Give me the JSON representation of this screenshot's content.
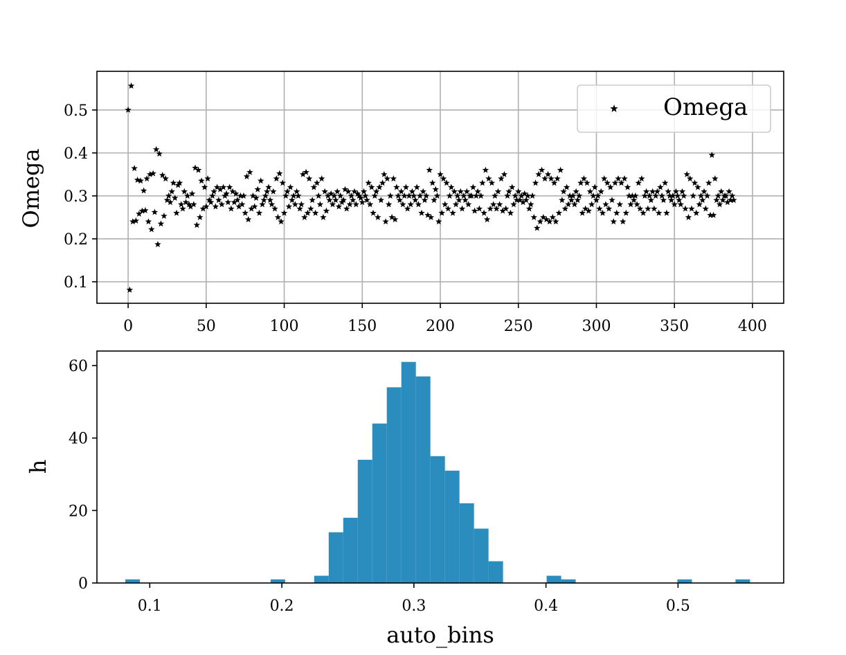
{
  "chart_data": [
    {
      "type": "scatter",
      "marker": "star",
      "color": "#000000",
      "ylabel": "Omega",
      "xlabel_visible": "",
      "xlim": [
        -20,
        420
      ],
      "ylim": [
        0.05,
        0.59
      ],
      "xticks": [
        0,
        50,
        100,
        150,
        200,
        250,
        300,
        350,
        400
      ],
      "yticks": [
        0.1,
        0.2,
        0.3,
        0.4,
        0.5
      ],
      "grid": true,
      "legend": {
        "position": "top-right",
        "entries": [
          "Omega"
        ]
      },
      "series": [
        {
          "name": "Omega",
          "x_start": 0,
          "x_step": 1,
          "values": [
            0.5,
            0.081,
            0.556,
            0.24,
            0.364,
            0.242,
            0.337,
            0.258,
            0.335,
            0.265,
            0.312,
            0.266,
            0.34,
            0.24,
            0.35,
            0.222,
            0.352,
            0.262,
            0.408,
            0.187,
            0.398,
            0.235,
            0.348,
            0.253,
            0.34,
            0.29,
            0.3,
            0.285,
            0.31,
            0.33,
            0.295,
            0.26,
            0.325,
            0.33,
            0.28,
            0.27,
            0.31,
            0.285,
            0.3,
            0.28,
            0.275,
            0.305,
            0.28,
            0.365,
            0.232,
            0.36,
            0.25,
            0.335,
            0.27,
            0.32,
            0.275,
            0.34,
            0.29,
            0.285,
            0.3,
            0.31,
            0.275,
            0.32,
            0.29,
            0.315,
            0.28,
            0.32,
            0.3,
            0.305,
            0.285,
            0.32,
            0.27,
            0.31,
            0.285,
            0.305,
            0.29,
            0.275,
            0.3,
            0.28,
            0.3,
            0.26,
            0.345,
            0.245,
            0.355,
            0.27,
            0.3,
            0.275,
            0.295,
            0.315,
            0.26,
            0.335,
            0.28,
            0.29,
            0.3,
            0.31,
            0.32,
            0.29,
            0.28,
            0.31,
            0.27,
            0.34,
            0.25,
            0.352,
            0.24,
            0.33,
            0.26,
            0.3,
            0.31,
            0.275,
            0.32,
            0.29,
            0.3,
            0.28,
            0.31,
            0.3,
            0.27,
            0.28,
            0.35,
            0.25,
            0.355,
            0.26,
            0.34,
            0.27,
            0.29,
            0.32,
            0.26,
            0.33,
            0.3,
            0.28,
            0.34,
            0.25,
            0.31,
            0.265,
            0.3,
            0.29,
            0.305,
            0.28,
            0.3,
            0.29,
            0.31,
            0.275,
            0.3,
            0.285,
            0.29,
            0.315,
            0.27,
            0.31,
            0.28,
            0.3,
            0.29,
            0.31,
            0.28,
            0.305,
            0.3,
            0.295,
            0.285,
            0.31,
            0.3,
            0.29,
            0.33,
            0.28,
            0.32,
            0.26,
            0.3,
            0.31,
            0.25,
            0.32,
            0.29,
            0.33,
            0.35,
            0.24,
            0.34,
            0.28,
            0.3,
            0.25,
            0.34,
            0.245,
            0.32,
            0.3,
            0.29,
            0.31,
            0.28,
            0.3,
            0.32,
            0.27,
            0.3,
            0.28,
            0.31,
            0.3,
            0.29,
            0.32,
            0.28,
            0.3,
            0.26,
            0.31,
            0.29,
            0.3,
            0.255,
            0.36,
            0.25,
            0.33,
            0.29,
            0.315,
            0.3,
            0.24,
            0.35,
            0.26,
            0.34,
            0.28,
            0.33,
            0.27,
            0.3,
            0.32,
            0.26,
            0.31,
            0.28,
            0.3,
            0.29,
            0.31,
            0.27,
            0.3,
            0.29,
            0.31,
            0.28,
            0.3,
            0.3,
            0.32,
            0.265,
            0.3,
            0.31,
            0.27,
            0.3,
            0.33,
            0.26,
            0.36,
            0.245,
            0.34,
            0.27,
            0.33,
            0.28,
            0.3,
            0.27,
            0.31,
            0.28,
            0.34,
            0.265,
            0.35,
            0.27,
            0.3,
            0.31,
            0.26,
            0.32,
            0.28,
            0.3,
            0.29,
            0.31,
            0.29,
            0.3,
            0.285,
            0.305,
            0.29,
            0.3,
            0.27,
            0.28,
            0.3,
            0.25,
            0.33,
            0.225,
            0.35,
            0.24,
            0.36,
            0.25,
            0.34,
            0.245,
            0.35,
            0.24,
            0.34,
            0.25,
            0.33,
            0.24,
            0.34,
            0.26,
            0.36,
            0.29,
            0.31,
            0.27,
            0.32,
            0.28,
            0.3,
            0.29,
            0.3,
            0.28,
            0.31,
            0.29,
            0.3,
            0.33,
            0.26,
            0.34,
            0.27,
            0.33,
            0.265,
            0.31,
            0.28,
            0.3,
            0.32,
            0.29,
            0.3,
            0.27,
            0.31,
            0.26,
            0.34,
            0.28,
            0.33,
            0.27,
            0.32,
            0.29,
            0.24,
            0.33,
            0.26,
            0.34,
            0.28,
            0.33,
            0.24,
            0.34,
            0.26,
            0.32,
            0.3,
            0.28,
            0.3,
            0.29,
            0.3,
            0.28,
            0.33,
            0.27,
            0.34,
            0.26,
            0.3,
            0.31,
            0.27,
            0.3,
            0.29,
            0.31,
            0.27,
            0.3,
            0.31,
            0.26,
            0.32,
            0.3,
            0.29,
            0.33,
            0.26,
            0.31,
            0.3,
            0.29,
            0.3,
            0.28,
            0.31,
            0.3,
            0.29,
            0.28,
            0.31,
            0.3,
            0.27,
            0.35,
            0.25,
            0.34,
            0.27,
            0.3,
            0.33,
            0.26,
            0.32,
            0.28,
            0.3,
            0.29,
            0.31,
            0.27,
            0.3,
            0.33,
            0.255,
            0.395,
            0.255,
            0.34,
            0.29,
            0.3,
            0.28,
            0.31,
            0.29,
            0.3,
            0.3,
            0.285,
            0.31,
            0.29,
            0.3,
            0.29
          ]
        }
      ]
    },
    {
      "type": "bar",
      "histogram": true,
      "color": "#2b8cbe",
      "xlabel": "auto_bins",
      "ylabel": "h",
      "xlim": [
        0.06,
        0.58
      ],
      "ylim": [
        0,
        64
      ],
      "xticks": [
        0.1,
        0.2,
        0.3,
        0.4,
        0.5
      ],
      "yticks": [
        0,
        20,
        40,
        60
      ],
      "grid": false,
      "bin_edges": [
        0.0815,
        0.0925,
        0.1035,
        0.1145,
        0.1255,
        0.1365,
        0.1475,
        0.1585,
        0.1695,
        0.1805,
        0.1915,
        0.2025,
        0.2135,
        0.2245,
        0.2355,
        0.2465,
        0.2575,
        0.2685,
        0.2795,
        0.2905,
        0.3015,
        0.3125,
        0.3235,
        0.3345,
        0.3455,
        0.3565,
        0.3675,
        0.3785,
        0.3895,
        0.4005,
        0.4115,
        0.4225,
        0.4335,
        0.4445,
        0.4555,
        0.4665,
        0.4775,
        0.4885,
        0.4995,
        0.5105,
        0.5215,
        0.5325,
        0.5435,
        0.5545
      ],
      "counts": [
        1,
        0,
        0,
        0,
        0,
        0,
        0,
        0,
        0,
        0,
        1,
        0,
        0,
        2,
        14,
        18,
        34,
        44,
        54,
        61,
        57,
        35,
        31,
        22,
        15,
        6,
        0,
        0,
        0,
        2,
        1,
        0,
        0,
        0,
        0,
        0,
        0,
        0,
        1,
        0,
        0,
        0,
        1
      ]
    }
  ]
}
